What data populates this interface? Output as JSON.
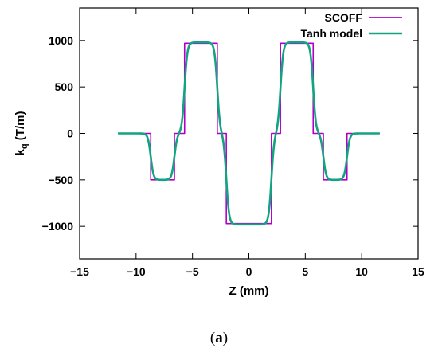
{
  "chart_data": {
    "type": "line",
    "xlabel": "Z (mm)",
    "ylabel_main": "k",
    "ylabel_sub": "q",
    "ylabel_unit": " (T/m)",
    "xlim": [
      -15,
      15
    ],
    "ylim": [
      -1350,
      1350
    ],
    "xticks": [
      -15,
      -10,
      -5,
      0,
      5,
      10,
      15
    ],
    "yticks": [
      -1000,
      -500,
      0,
      500,
      1000
    ],
    "xtick_labels": [
      "−15",
      "−10",
      "−5",
      "0",
      "5",
      "10",
      "15"
    ],
    "ytick_labels": [
      "−1000",
      "−500",
      "0",
      "500",
      "1000"
    ],
    "grid": false,
    "legend_position": "top-right",
    "series": [
      {
        "name": "SCOFF",
        "color": "#b000c8",
        "style": "step",
        "x": [
          -11.6,
          -8.7,
          -8.7,
          -6.6,
          -6.6,
          -5.7,
          -5.7,
          -2.8,
          -2.8,
          -2.0,
          -2.0,
          2.0,
          2.0,
          2.8,
          2.8,
          5.7,
          5.7,
          6.6,
          6.6,
          8.7,
          8.7,
          11.6
        ],
        "y": [
          0,
          0,
          -500,
          -500,
          0,
          0,
          970,
          970,
          0,
          0,
          -970,
          -970,
          0,
          0,
          970,
          970,
          0,
          0,
          -500,
          -500,
          0,
          0
        ]
      },
      {
        "name": "Tanh model",
        "color": "#13a381",
        "style": "smooth",
        "x_range": [
          -11.6,
          11.6
        ],
        "segments": [
          {
            "from": -8.7,
            "to": -6.6,
            "value": -500
          },
          {
            "from": -5.7,
            "to": -2.8,
            "value": 980
          },
          {
            "from": -2.0,
            "to": 2.0,
            "value": -980
          },
          {
            "from": 2.8,
            "to": 5.7,
            "value": 980
          },
          {
            "from": 6.6,
            "to": 8.7,
            "value": -500
          }
        ]
      }
    ]
  },
  "caption": {
    "open": "(",
    "label": "a",
    "close": ")"
  }
}
